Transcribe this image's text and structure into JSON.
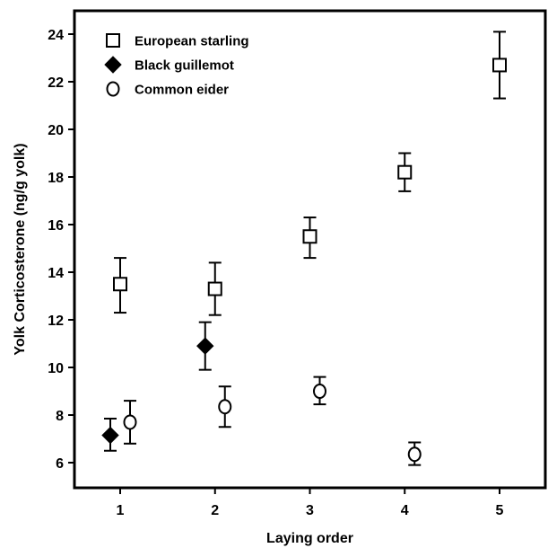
{
  "chart_data": {
    "type": "scatter",
    "title": "",
    "xlabel": "Laying order",
    "ylabel": "Yolk Corticosterone  (ng/g yolk)",
    "xlim": [
      0.5,
      5.5
    ],
    "ylim": [
      5,
      25
    ],
    "xticks": [
      1,
      2,
      3,
      4,
      5
    ],
    "yticks": [
      6,
      8,
      10,
      12,
      14,
      16,
      18,
      20,
      22,
      24
    ],
    "legend_position": "top-left",
    "grid": false,
    "series": [
      {
        "name": "European starling",
        "marker": "open-square",
        "color": "#000000",
        "points": [
          {
            "x": 1,
            "y": 13.5,
            "lower": 12.3,
            "upper": 14.6
          },
          {
            "x": 2,
            "y": 13.3,
            "lower": 12.2,
            "upper": 14.4
          },
          {
            "x": 3,
            "y": 15.5,
            "lower": 14.6,
            "upper": 16.3
          },
          {
            "x": 4,
            "y": 18.2,
            "lower": 17.4,
            "upper": 19.0
          },
          {
            "x": 5,
            "y": 22.7,
            "lower": 21.3,
            "upper": 24.1
          }
        ]
      },
      {
        "name": "Black guillemot",
        "marker": "filled-diamond",
        "color": "#000000",
        "points": [
          {
            "x": 1,
            "y": 7.15,
            "lower": 6.5,
            "upper": 7.85
          },
          {
            "x": 2,
            "y": 10.9,
            "lower": 9.9,
            "upper": 11.9
          }
        ]
      },
      {
        "name": "Common eider",
        "marker": "open-circle",
        "color": "#000000",
        "points": [
          {
            "x": 1,
            "y": 7.7,
            "lower": 6.8,
            "upper": 8.6
          },
          {
            "x": 2,
            "y": 8.35,
            "lower": 7.5,
            "upper": 9.2
          },
          {
            "x": 3,
            "y": 9.0,
            "lower": 8.45,
            "upper": 9.6
          },
          {
            "x": 4,
            "y": 6.35,
            "lower": 5.9,
            "upper": 6.85
          }
        ]
      }
    ]
  }
}
